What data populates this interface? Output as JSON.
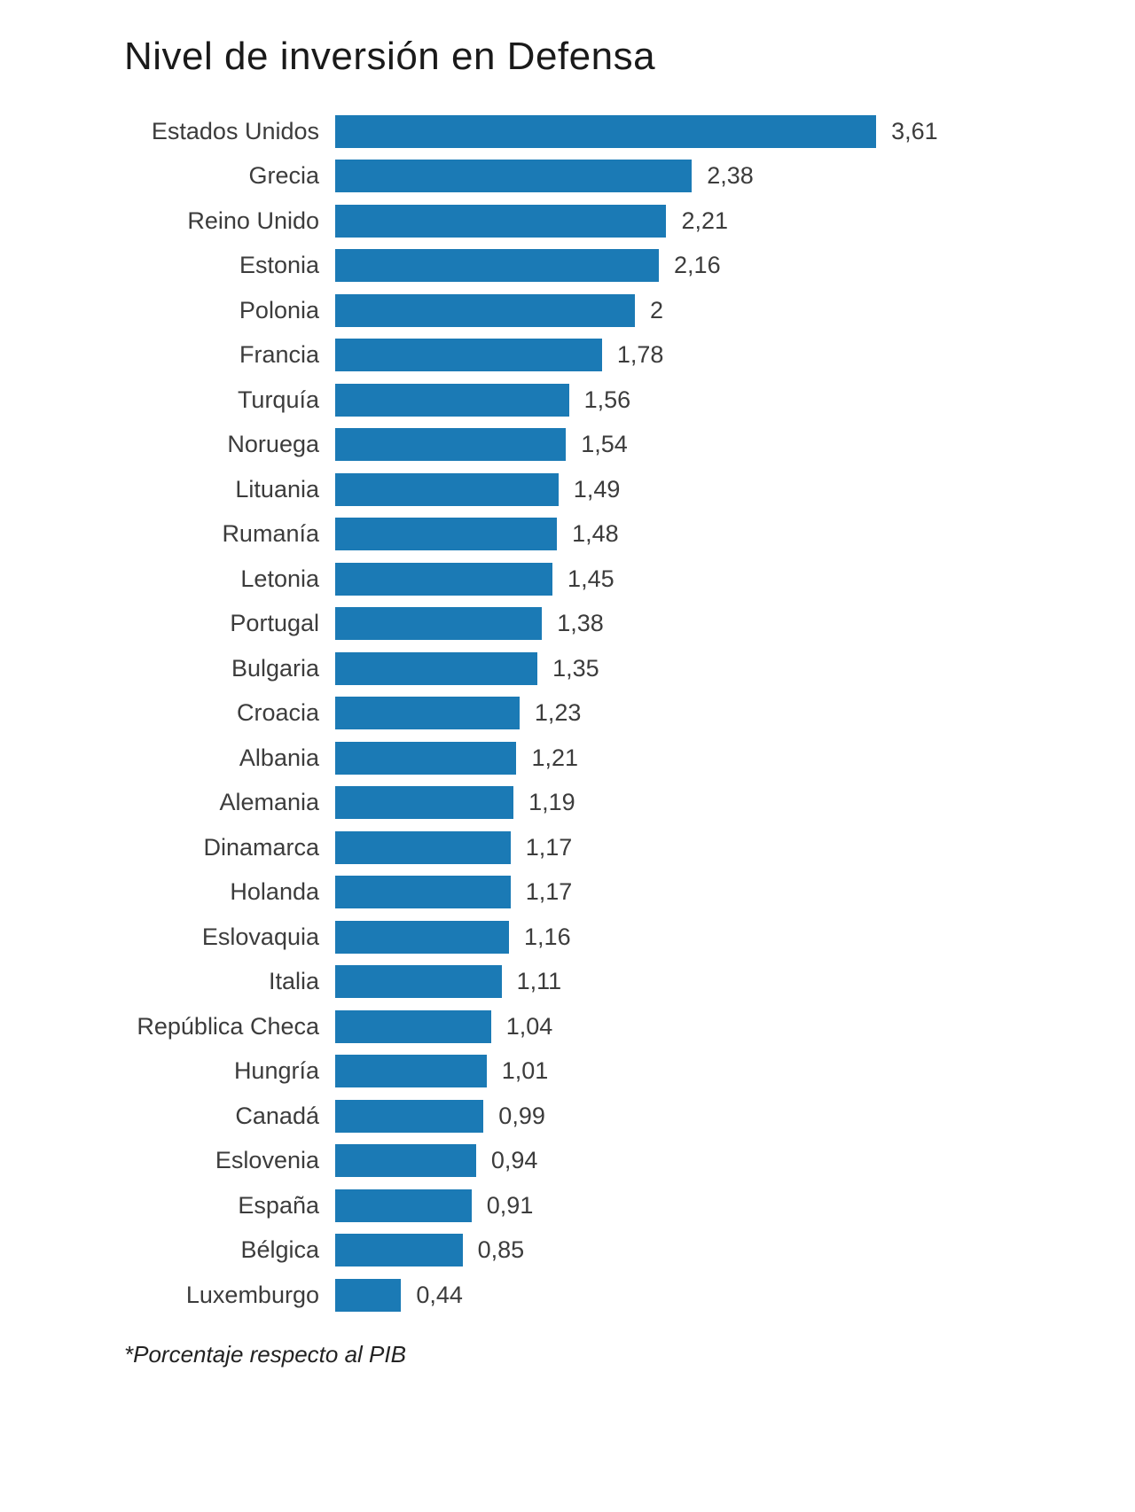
{
  "title": "Nivel de inversión en Defensa",
  "footnote": "*Porcentaje respecto al PIB",
  "colors": {
    "bar": "#1b7ab5",
    "title_text": "#1a1a1a",
    "label_text": "#3c3c3c",
    "background": "#ffffff"
  },
  "chart_data": {
    "type": "bar",
    "orientation": "horizontal",
    "title": "Nivel de inversión en Defensa",
    "xlabel": "",
    "ylabel": "",
    "xlim": [
      0,
      3.61
    ],
    "grid": false,
    "legend": false,
    "value_decimal_separator": ",",
    "footnote": "*Porcentaje respecto al PIB",
    "categories": [
      "Estados Unidos",
      "Grecia",
      "Reino Unido",
      "Estonia",
      "Polonia",
      "Francia",
      "Turquía",
      "Noruega",
      "Lituania",
      "Rumanía",
      "Letonia",
      "Portugal",
      "Bulgaria",
      "Croacia",
      "Albania",
      "Alemania",
      "Dinamarca",
      "Holanda",
      "Eslovaquia",
      "Italia",
      "República Checa",
      "Hungría",
      "Canadá",
      "Eslovenia",
      "España",
      "Bélgica",
      "Luxemburgo"
    ],
    "values": [
      3.61,
      2.38,
      2.21,
      2.16,
      2,
      1.78,
      1.56,
      1.54,
      1.49,
      1.48,
      1.45,
      1.38,
      1.35,
      1.23,
      1.21,
      1.19,
      1.17,
      1.17,
      1.16,
      1.11,
      1.04,
      1.01,
      0.99,
      0.94,
      0.91,
      0.85,
      0.44
    ],
    "value_labels": [
      "3,61",
      "2,38",
      "2,21",
      "2,16",
      "2",
      "1,78",
      "1,56",
      "1,54",
      "1,49",
      "1,48",
      "1,45",
      "1,38",
      "1,35",
      "1,23",
      "1,21",
      "1,19",
      "1,17",
      "1,17",
      "1,16",
      "1,11",
      "1,04",
      "1,01",
      "0,99",
      "0,94",
      "0,91",
      "0,85",
      "0,44"
    ]
  }
}
